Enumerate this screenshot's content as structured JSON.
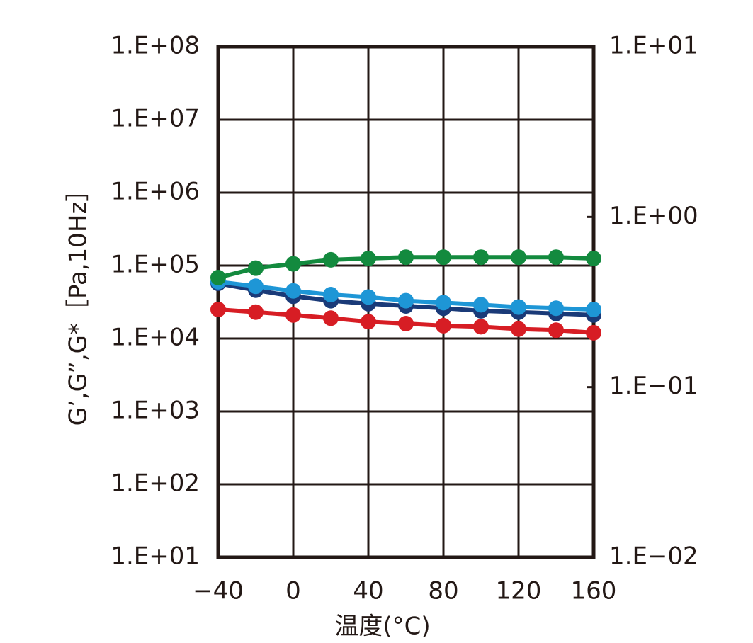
{
  "chart_data": {
    "type": "line",
    "x_label": "温度(°C)",
    "y_label": "G’,G”,G*［Pa,10Hz］",
    "x": [
      -40,
      -20,
      0,
      20,
      40,
      60,
      80,
      100,
      120,
      140,
      160
    ],
    "xlim": [
      -40,
      160
    ],
    "xticks": [
      {
        "value": -40,
        "label": "−40"
      },
      0,
      40,
      80,
      120,
      160
    ],
    "ylim": [
      10,
      100000000
    ],
    "yticks": [
      {
        "value": 10,
        "label": "1.E+01"
      },
      {
        "value": 100,
        "label": "1.E+02"
      },
      {
        "value": 1000,
        "label": "1.E+03"
      },
      {
        "value": 10000,
        "label": "1.E+04"
      },
      {
        "value": 100000,
        "label": "1.E+05"
      },
      {
        "value": 1000000,
        "label": "1.E+06"
      },
      {
        "value": 10000000,
        "label": "1.E+07"
      },
      {
        "value": 100000000,
        "label": "1.E+08"
      }
    ],
    "y2lim": [
      0.01,
      10
    ],
    "y2ticks": [
      {
        "value": 0.01,
        "label": "1.E−02"
      },
      {
        "value": 0.1,
        "label": "1.E−01"
      },
      {
        "value": 1,
        "label": "1.E+00"
      },
      {
        "value": 10,
        "label": "1.E+01"
      }
    ],
    "log_scale": true,
    "grid": true,
    "series": [
      {
        "color": "#1a3a78",
        "values": [
          57000,
          46000,
          38000,
          33000,
          30000,
          28000,
          26000,
          24000,
          23000,
          22000,
          21000
        ]
      },
      {
        "color": "#1e96d6",
        "values": [
          60000,
          52000,
          45000,
          40000,
          37000,
          33000,
          31000,
          29000,
          27000,
          26000,
          25000
        ]
      },
      {
        "color": "#d71d24",
        "values": [
          25000,
          23000,
          21000,
          19000,
          17000,
          16000,
          15000,
          14500,
          13500,
          13000,
          12000
        ]
      },
      {
        "color": "#138a3e",
        "axis": "y2",
        "values": [
          0.44,
          0.5,
          0.53,
          0.56,
          0.57,
          0.58,
          0.58,
          0.58,
          0.58,
          0.58,
          0.57
        ]
      }
    ]
  }
}
